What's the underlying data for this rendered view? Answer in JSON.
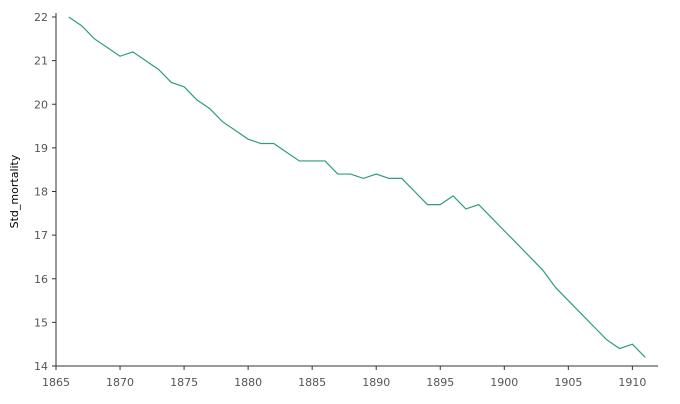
{
  "chart_data": {
    "type": "line",
    "title": "",
    "xlabel": "",
    "ylabel": "Std_mortality",
    "xlim": [
      1865,
      1912
    ],
    "ylim": [
      14,
      22
    ],
    "xticks": [
      1865,
      1870,
      1875,
      1880,
      1885,
      1890,
      1895,
      1900,
      1905,
      1910
    ],
    "yticks": [
      14,
      15,
      16,
      17,
      18,
      19,
      20,
      21,
      22
    ],
    "grid": false,
    "legend": "none",
    "colors": {
      "line": "#2e9e78",
      "axis": "#333333",
      "tick_label": "#555555"
    },
    "series": [
      {
        "x": [
          1866,
          1867,
          1868,
          1869,
          1870,
          1871,
          1872,
          1873,
          1874,
          1875,
          1876,
          1877,
          1878,
          1879,
          1880,
          1881,
          1882,
          1883,
          1884,
          1885,
          1886,
          1887,
          1888,
          1889,
          1890,
          1891,
          1892,
          1893,
          1894,
          1895,
          1896,
          1897,
          1898,
          1899,
          1900,
          1901,
          1902,
          1903,
          1904,
          1905,
          1906,
          1907,
          1908,
          1909,
          1910,
          1911
        ],
        "values": [
          22.0,
          21.8,
          21.5,
          21.3,
          21.1,
          21.2,
          21.0,
          20.8,
          20.5,
          20.4,
          20.1,
          19.9,
          19.6,
          19.4,
          19.2,
          19.1,
          19.1,
          18.9,
          18.7,
          18.7,
          18.7,
          18.4,
          18.4,
          18.3,
          18.4,
          18.3,
          18.3,
          18.0,
          17.7,
          17.7,
          17.9,
          17.6,
          17.7,
          17.4,
          17.1,
          16.8,
          16.5,
          16.2,
          15.8,
          15.5,
          15.2,
          14.9,
          14.6,
          14.4,
          14.5,
          14.2
        ]
      }
    ]
  }
}
